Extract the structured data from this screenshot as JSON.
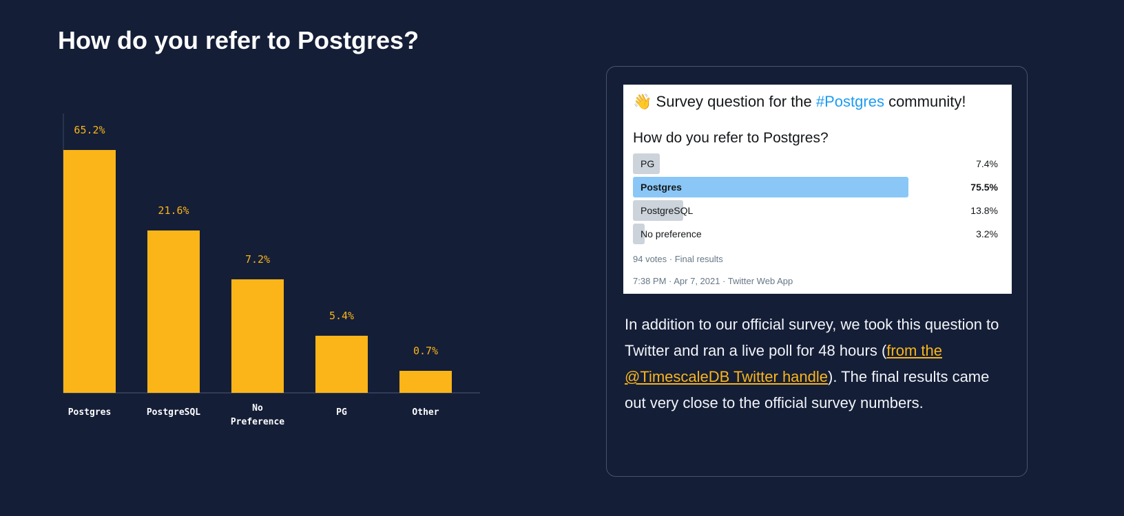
{
  "page_title": "How do you refer to Postgres?",
  "chart_data": {
    "type": "bar",
    "title": "How do you refer to Postgres?",
    "categories": [
      "Postgres",
      "PostgreSQL",
      "No Preference",
      "PG",
      "Other"
    ],
    "values": [
      65.2,
      21.6,
      7.2,
      5.4,
      0.7
    ],
    "value_labels": [
      "65.2%",
      "21.6%",
      "7.2%",
      "5.4%",
      "0.7%"
    ],
    "unit": "%",
    "xlabel": "",
    "ylabel": "",
    "grid": false,
    "bar_color": "#fbb519"
  },
  "tweet": {
    "emoji": "👋",
    "header_pre": "Survey question for the ",
    "hashtag": "#Postgres",
    "header_post": " community!",
    "question": "How do you refer to Postgres?",
    "options": [
      {
        "label": "PG",
        "percent": 7.4,
        "percent_label": "7.4%"
      },
      {
        "label": "Postgres",
        "percent": 75.5,
        "percent_label": "75.5%",
        "winner": true
      },
      {
        "label": "PostgreSQL",
        "percent": 13.8,
        "percent_label": "13.8%"
      },
      {
        "label": "No preference",
        "percent": 3.2,
        "percent_label": "3.2%"
      }
    ],
    "votes": "94 votes · Final results",
    "timestamp": "7:38 PM · Apr 7, 2021 · Twitter Web App"
  },
  "description": {
    "before_link": "In addition to our official survey, we took this question to Twitter and ran a live poll for 48 hours (",
    "link_text": "from the @TimescaleDB Twitter handle",
    "after_link": "). The final results came out very close to the official survey numbers."
  }
}
